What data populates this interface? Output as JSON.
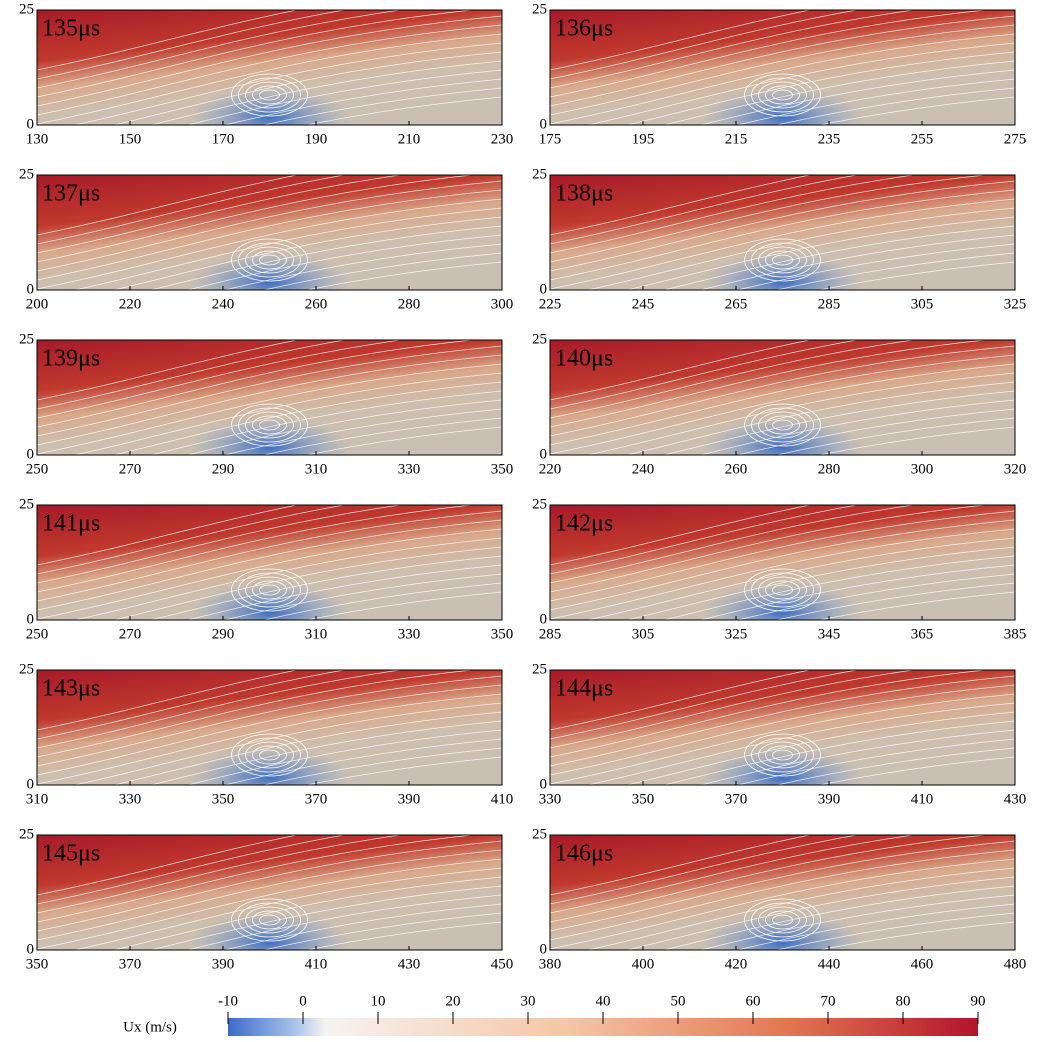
{
  "chart_data": [
    {
      "type": "heatmap",
      "annotation": "135μs",
      "xlim": [
        130,
        230
      ],
      "xticks": [
        130,
        150,
        170,
        190,
        210,
        230
      ],
      "ylim": [
        0,
        25
      ],
      "yticks": [
        0,
        25
      ]
    },
    {
      "type": "heatmap",
      "annotation": "136μs",
      "xlim": [
        175,
        275
      ],
      "xticks": [
        175,
        195,
        215,
        235,
        255,
        275
      ],
      "ylim": [
        0,
        25
      ],
      "yticks": [
        0,
        25
      ]
    },
    {
      "type": "heatmap",
      "annotation": "137μs",
      "xlim": [
        200,
        300
      ],
      "xticks": [
        200,
        220,
        240,
        260,
        280,
        300
      ],
      "ylim": [
        0,
        25
      ],
      "yticks": [
        0,
        25
      ]
    },
    {
      "type": "heatmap",
      "annotation": "138μs",
      "xlim": [
        225,
        325
      ],
      "xticks": [
        225,
        245,
        265,
        285,
        305,
        325
      ],
      "ylim": [
        0,
        25
      ],
      "yticks": [
        0,
        25
      ]
    },
    {
      "type": "heatmap",
      "annotation": "139μs",
      "xlim": [
        250,
        350
      ],
      "xticks": [
        250,
        270,
        290,
        310,
        330,
        350
      ],
      "ylim": [
        0,
        25
      ],
      "yticks": [
        0,
        25
      ]
    },
    {
      "type": "heatmap",
      "annotation": "140μs",
      "xlim": [
        220,
        320
      ],
      "xticks": [
        220,
        240,
        260,
        280,
        300,
        320
      ],
      "ylim": [
        0,
        25
      ],
      "yticks": [
        0,
        25
      ]
    },
    {
      "type": "heatmap",
      "annotation": "141μs",
      "xlim": [
        250,
        350
      ],
      "xticks": [
        250,
        270,
        290,
        310,
        330,
        350
      ],
      "ylim": [
        0,
        25
      ],
      "yticks": [
        0,
        25
      ]
    },
    {
      "type": "heatmap",
      "annotation": "142μs",
      "xlim": [
        285,
        385
      ],
      "xticks": [
        285,
        305,
        325,
        345,
        365,
        385
      ],
      "ylim": [
        0,
        25
      ],
      "yticks": [
        0,
        25
      ]
    },
    {
      "type": "heatmap",
      "annotation": "143μs",
      "xlim": [
        310,
        410
      ],
      "xticks": [
        310,
        330,
        350,
        370,
        390,
        410
      ],
      "ylim": [
        0,
        25
      ],
      "yticks": [
        0,
        25
      ]
    },
    {
      "type": "heatmap",
      "annotation": "144μs",
      "xlim": [
        330,
        430
      ],
      "xticks": [
        330,
        350,
        370,
        390,
        410,
        430
      ],
      "ylim": [
        0,
        25
      ],
      "yticks": [
        0,
        25
      ]
    },
    {
      "type": "heatmap",
      "annotation": "145μs",
      "xlim": [
        350,
        450
      ],
      "xticks": [
        350,
        370,
        390,
        410,
        430,
        450
      ],
      "ylim": [
        0,
        25
      ],
      "yticks": [
        0,
        25
      ]
    },
    {
      "type": "heatmap",
      "annotation": "146μs",
      "xlim": [
        380,
        480
      ],
      "xticks": [
        380,
        400,
        420,
        440,
        460,
        480
      ],
      "ylim": [
        0,
        25
      ],
      "yticks": [
        0,
        25
      ]
    }
  ],
  "colorbar": {
    "label": "Ux (m/s)",
    "range": [
      -10,
      90
    ],
    "ticks": [
      -10,
      0,
      10,
      20,
      30,
      40,
      50,
      60,
      70,
      80,
      90
    ]
  }
}
